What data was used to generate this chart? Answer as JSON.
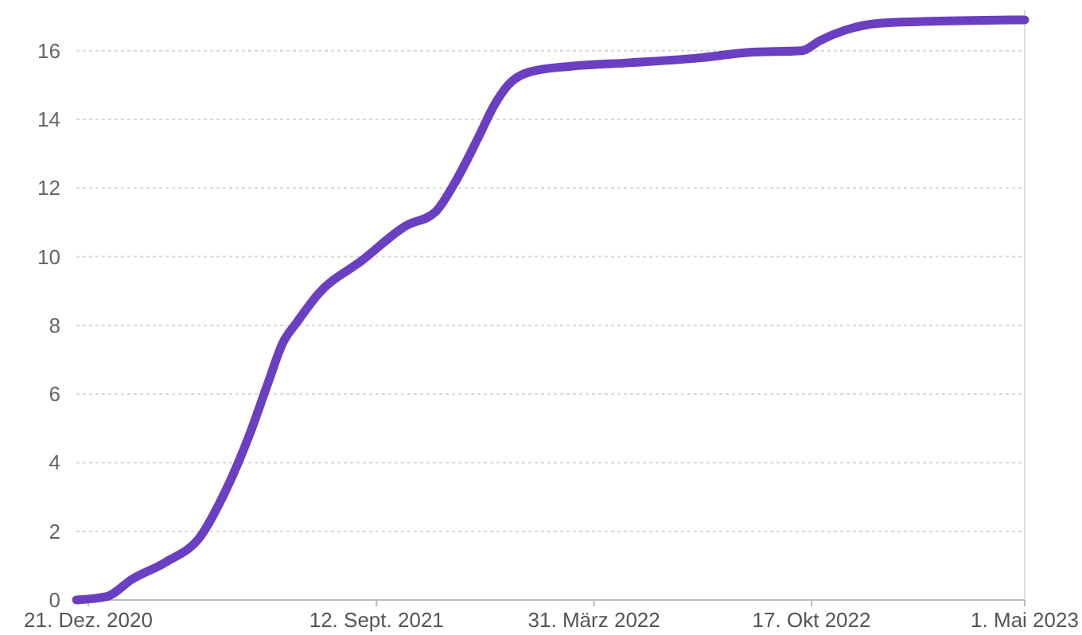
{
  "chart_data": {
    "type": "line",
    "x": [
      "2020-12-10",
      "2021-01-07",
      "2021-01-30",
      "2021-03-02",
      "2021-04-03",
      "2021-04-25",
      "2021-05-18",
      "2021-06-04",
      "2021-06-18",
      "2021-07-01",
      "2021-07-20",
      "2021-08-30",
      "2021-10-09",
      "2021-11-05",
      "2021-11-22",
      "2021-12-15",
      "2021-12-29",
      "2022-01-11",
      "2022-02-02",
      "2022-03-10",
      "2022-05-03",
      "2022-07-09",
      "2022-08-19",
      "2022-10-08",
      "2022-10-25",
      "2022-11-17",
      "2022-12-18",
      "2023-01-27",
      "2023-05-01"
    ],
    "series": [
      {
        "color": "#6a3fc1",
        "values": [
          0,
          0.1,
          0.6,
          1.1,
          1.85,
          3.1,
          4.8,
          6.3,
          7.5,
          8.1,
          8.9,
          9.9,
          10.9,
          11.3,
          12.1,
          13.5,
          14.4,
          15.0,
          15.4,
          15.55,
          15.65,
          15.8,
          15.95,
          16.0,
          16.3,
          16.6,
          16.8,
          16.85,
          16.9
        ]
      }
    ],
    "xlim": [
      "2020-12-10",
      "2023-05-01"
    ],
    "xticks": [
      {
        "value": "2020-12-21",
        "label": "21. Dez. 2020"
      },
      {
        "value": "2021-09-12",
        "label": "12. Sept. 2021"
      },
      {
        "value": "2022-03-31",
        "label": "31. März 2022"
      },
      {
        "value": "2022-10-17",
        "label": "17. Okt 2022"
      },
      {
        "value": "2023-05-01",
        "label": "1. Mai 2023"
      }
    ],
    "ylim": [
      0,
      17.2
    ],
    "yticks": [
      0,
      2,
      4,
      6,
      8,
      10,
      12,
      14,
      16
    ],
    "grid": "y",
    "marker": "none",
    "line_style": "solid"
  }
}
